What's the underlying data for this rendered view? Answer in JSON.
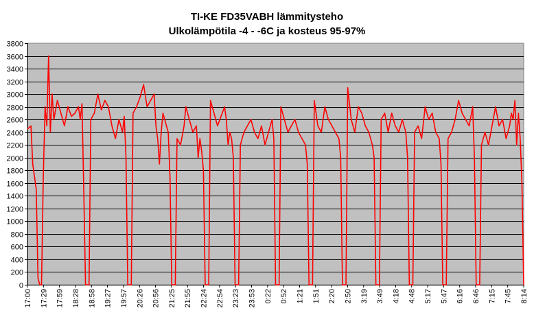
{
  "chart_data": {
    "type": "line",
    "title": "TI-KE FD35VABH lämmitysteho",
    "subtitle": "Ulkolämpötila  -4 - -6C ja kosteus 95-97%",
    "xlabel": "",
    "ylabel": "",
    "ylim": [
      0,
      3800
    ],
    "ytick_step": 200,
    "y_ticks": [
      "0",
      "200",
      "400",
      "600",
      "800",
      "1000",
      "1200",
      "1400",
      "1600",
      "1800",
      "2000",
      "2200",
      "2400",
      "2600",
      "2800",
      "3000",
      "3200",
      "3400",
      "3600",
      "3800"
    ],
    "x_tick_labels": [
      "17:00",
      "17:29",
      "17:59",
      "18:28",
      "18:58",
      "19:27",
      "19:57",
      "20:26",
      "20:56",
      "21:25",
      "21:55",
      "22:24",
      "22:54",
      "23:23",
      "23:53",
      "0:22",
      "0:52",
      "1:21",
      "1:51",
      "2:20",
      "2:50",
      "3:19",
      "3:49",
      "4:18",
      "4:48",
      "5:17",
      "5:47",
      "6:16",
      "6:46",
      "7:15",
      "7:45",
      "8:14"
    ],
    "grid": true,
    "legend": "none",
    "colors": {
      "series": "#ff0000",
      "plot_bg": "#c0c0c0",
      "grid": "#000000"
    },
    "series": [
      {
        "values": [
          [
            0,
            2450
          ],
          [
            2,
            2500
          ],
          [
            3,
            1900
          ],
          [
            5,
            1500
          ],
          [
            6,
            100
          ],
          [
            7,
            0
          ],
          [
            8,
            0
          ],
          [
            9,
            1700
          ],
          [
            10,
            2800
          ],
          [
            11,
            2500
          ],
          [
            12,
            3600
          ],
          [
            13,
            2400
          ],
          [
            14,
            3000
          ],
          [
            15,
            2600
          ],
          [
            17,
            2900
          ],
          [
            19,
            2700
          ],
          [
            21,
            2500
          ],
          [
            23,
            2800
          ],
          [
            25,
            2650
          ],
          [
            27,
            2700
          ],
          [
            29,
            2800
          ],
          [
            30,
            2600
          ],
          [
            31,
            2850
          ],
          [
            32,
            1500
          ],
          [
            33,
            0
          ],
          [
            34,
            0
          ],
          [
            35,
            0
          ],
          [
            36,
            2600
          ],
          [
            38,
            2700
          ],
          [
            40,
            3000
          ],
          [
            42,
            2750
          ],
          [
            44,
            2900
          ],
          [
            46,
            2800
          ],
          [
            48,
            2500
          ],
          [
            50,
            2300
          ],
          [
            52,
            2600
          ],
          [
            54,
            2400
          ],
          [
            55,
            2650
          ],
          [
            56,
            2000
          ],
          [
            57,
            0
          ],
          [
            58,
            0
          ],
          [
            59,
            0
          ],
          [
            60,
            2700
          ],
          [
            62,
            2800
          ],
          [
            64,
            2950
          ],
          [
            66,
            3150
          ],
          [
            68,
            2800
          ],
          [
            70,
            2900
          ],
          [
            72,
            3000
          ],
          [
            73,
            2500
          ],
          [
            74,
            2300
          ],
          [
            75,
            1900
          ],
          [
            76,
            2400
          ],
          [
            77,
            2700
          ],
          [
            78,
            2600
          ],
          [
            79,
            2500
          ],
          [
            80,
            2400
          ],
          [
            81,
            1700
          ],
          [
            82,
            0
          ],
          [
            83,
            0
          ],
          [
            84,
            0
          ],
          [
            85,
            2300
          ],
          [
            87,
            2200
          ],
          [
            89,
            2500
          ],
          [
            90,
            2800
          ],
          [
            92,
            2600
          ],
          [
            94,
            2400
          ],
          [
            96,
            2500
          ],
          [
            97,
            2000
          ],
          [
            98,
            2300
          ],
          [
            99,
            2100
          ],
          [
            100,
            1800
          ],
          [
            101,
            0
          ],
          [
            102,
            0
          ],
          [
            103,
            0
          ],
          [
            104,
            2900
          ],
          [
            106,
            2700
          ],
          [
            108,
            2500
          ],
          [
            110,
            2650
          ],
          [
            112,
            2800
          ],
          [
            113,
            2600
          ],
          [
            114,
            2200
          ],
          [
            115,
            2400
          ],
          [
            116,
            2300
          ],
          [
            117,
            2000
          ],
          [
            118,
            0
          ],
          [
            119,
            0
          ],
          [
            120,
            0
          ],
          [
            121,
            2200
          ],
          [
            123,
            2400
          ],
          [
            125,
            2500
          ],
          [
            127,
            2600
          ],
          [
            129,
            2400
          ],
          [
            131,
            2300
          ],
          [
            133,
            2500
          ],
          [
            135,
            2200
          ],
          [
            137,
            2400
          ],
          [
            139,
            2600
          ],
          [
            140,
            2300
          ],
          [
            141,
            0
          ],
          [
            142,
            0
          ],
          [
            143,
            0
          ],
          [
            144,
            2800
          ],
          [
            146,
            2600
          ],
          [
            148,
            2400
          ],
          [
            150,
            2500
          ],
          [
            152,
            2600
          ],
          [
            154,
            2400
          ],
          [
            156,
            2300
          ],
          [
            158,
            2200
          ],
          [
            159,
            1900
          ],
          [
            160,
            0
          ],
          [
            161,
            0
          ],
          [
            162,
            0
          ],
          [
            163,
            2900
          ],
          [
            165,
            2500
          ],
          [
            167,
            2400
          ],
          [
            169,
            2800
          ],
          [
            171,
            2600
          ],
          [
            173,
            2500
          ],
          [
            175,
            2400
          ],
          [
            177,
            2300
          ],
          [
            178,
            2000
          ],
          [
            179,
            0
          ],
          [
            180,
            0
          ],
          [
            181,
            0
          ],
          [
            182,
            3100
          ],
          [
            184,
            2600
          ],
          [
            186,
            2400
          ],
          [
            188,
            2800
          ],
          [
            190,
            2700
          ],
          [
            192,
            2500
          ],
          [
            194,
            2400
          ],
          [
            196,
            2200
          ],
          [
            197,
            2000
          ],
          [
            198,
            0
          ],
          [
            199,
            0
          ],
          [
            200,
            0
          ],
          [
            201,
            2600
          ],
          [
            203,
            2700
          ],
          [
            205,
            2400
          ],
          [
            207,
            2700
          ],
          [
            209,
            2500
          ],
          [
            211,
            2400
          ],
          [
            213,
            2600
          ],
          [
            215,
            2400
          ],
          [
            216,
            2000
          ],
          [
            217,
            0
          ],
          [
            218,
            0
          ],
          [
            219,
            0
          ],
          [
            220,
            2400
          ],
          [
            222,
            2500
          ],
          [
            224,
            2300
          ],
          [
            226,
            2800
          ],
          [
            228,
            2600
          ],
          [
            230,
            2700
          ],
          [
            232,
            2400
          ],
          [
            234,
            2300
          ],
          [
            235,
            1900
          ],
          [
            236,
            0
          ],
          [
            237,
            0
          ],
          [
            238,
            0
          ],
          [
            239,
            2300
          ],
          [
            241,
            2400
          ],
          [
            243,
            2600
          ],
          [
            245,
            2900
          ],
          [
            247,
            2700
          ],
          [
            249,
            2600
          ],
          [
            251,
            2500
          ],
          [
            253,
            2800
          ],
          [
            254,
            2000
          ],
          [
            255,
            0
          ],
          [
            256,
            0
          ],
          [
            257,
            0
          ],
          [
            258,
            2200
          ],
          [
            260,
            2400
          ],
          [
            262,
            2200
          ],
          [
            264,
            2500
          ],
          [
            266,
            2800
          ],
          [
            268,
            2500
          ],
          [
            270,
            2600
          ],
          [
            272,
            2300
          ],
          [
            274,
            2500
          ],
          [
            275,
            2700
          ],
          [
            276,
            2600
          ],
          [
            277,
            2900
          ],
          [
            278,
            2200
          ],
          [
            279,
            2700
          ],
          [
            280,
            2300
          ],
          [
            281,
            1600
          ],
          [
            282,
            0
          ]
        ]
      }
    ]
  }
}
